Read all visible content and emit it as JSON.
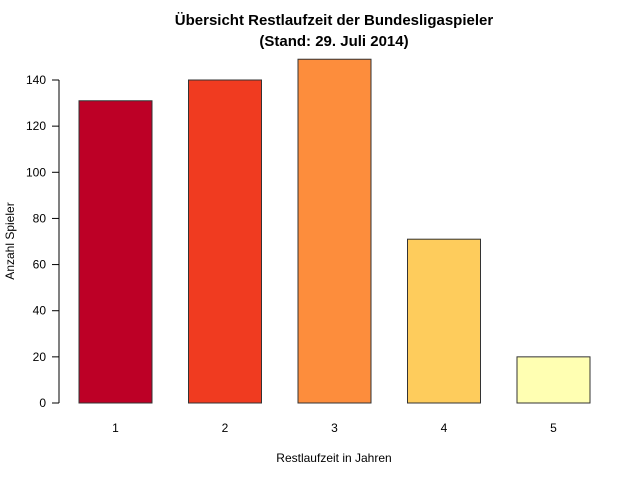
{
  "chart_data": {
    "type": "bar",
    "title_line1": "Übersicht Restlaufzeit der Bundesligaspieler",
    "title_line2": "(Stand: 29. Juli 2014)",
    "xlabel": "Restlaufzeit in Jahren",
    "ylabel": "Anzahl Spieler",
    "categories": [
      "1",
      "2",
      "3",
      "4",
      "5"
    ],
    "values": [
      131,
      140,
      149,
      71,
      20
    ],
    "colors": [
      "#BD0026",
      "#F03B20",
      "#FD8D3C",
      "#FECC5C",
      "#FFFFB2"
    ],
    "yticks": [
      0,
      20,
      40,
      60,
      80,
      100,
      120,
      140
    ],
    "ylim": [
      0,
      149
    ],
    "grid": false,
    "legend": "none"
  }
}
